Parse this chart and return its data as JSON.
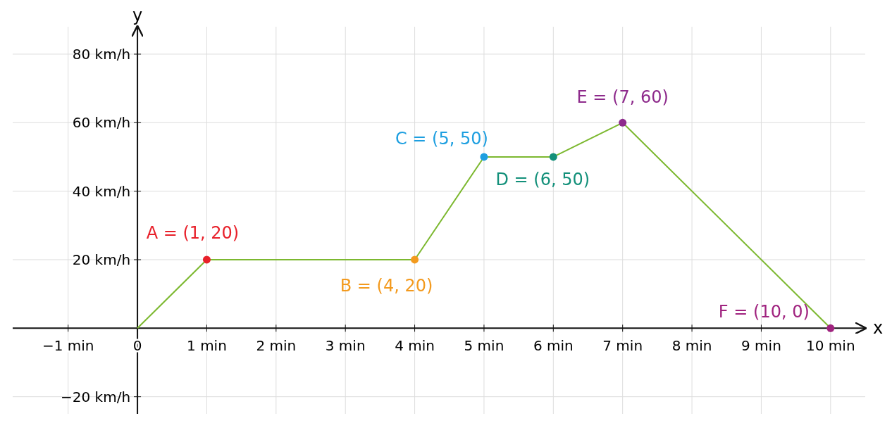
{
  "chart_data": {
    "type": "line",
    "xlabel": "x",
    "ylabel": "y",
    "xlim": [
      -1.8,
      10.5
    ],
    "ylim": [
      -25,
      88
    ],
    "xticks": [
      {
        "value": -1,
        "label": "−1 min"
      },
      {
        "value": 0,
        "label": "0"
      },
      {
        "value": 1,
        "label": "1 min"
      },
      {
        "value": 2,
        "label": "2 min"
      },
      {
        "value": 3,
        "label": "3 min"
      },
      {
        "value": 4,
        "label": "4 min"
      },
      {
        "value": 5,
        "label": "5 min"
      },
      {
        "value": 6,
        "label": "6 min"
      },
      {
        "value": 7,
        "label": "7 min"
      },
      {
        "value": 8,
        "label": "8 min"
      },
      {
        "value": 9,
        "label": "9 min"
      },
      {
        "value": 10,
        "label": "10 min"
      }
    ],
    "yticks": [
      {
        "value": -20,
        "label": "−20 km/h"
      },
      {
        "value": 20,
        "label": "20 km/h"
      },
      {
        "value": 40,
        "label": "40 km/h"
      },
      {
        "value": 60,
        "label": "60 km/h"
      },
      {
        "value": 80,
        "label": "80 km/h"
      }
    ],
    "grid": true,
    "series": [
      {
        "type": "line",
        "color": "#7cb82f",
        "marker": "none",
        "x": [
          0,
          1,
          4,
          5,
          6,
          7,
          10
        ],
        "values": [
          0,
          20,
          20,
          50,
          50,
          60,
          0
        ]
      },
      {
        "type": "scatter",
        "marker": "circle",
        "x": [
          1,
          4,
          5,
          6,
          7,
          10
        ],
        "values": [
          20,
          20,
          50,
          50,
          60,
          0
        ],
        "colors": [
          "#e8202a",
          "#f39a1e",
          "#1e9fe0",
          "#13907a",
          "#8e2b8c",
          "#a0237f"
        ]
      }
    ],
    "annotations": [
      {
        "text": "A = (1, 20)",
        "x": 1,
        "y": 20
      },
      {
        "text": "B = (4, 20)",
        "x": 4,
        "y": 20
      },
      {
        "text": "C = (5, 50)",
        "x": 5,
        "y": 50
      },
      {
        "text": "D = (6, 50)",
        "x": 6,
        "y": 50
      },
      {
        "text": "E = (7, 60)",
        "x": 7,
        "y": 60
      },
      {
        "text": "F = (10, 0)",
        "x": 10,
        "y": 0
      }
    ]
  }
}
